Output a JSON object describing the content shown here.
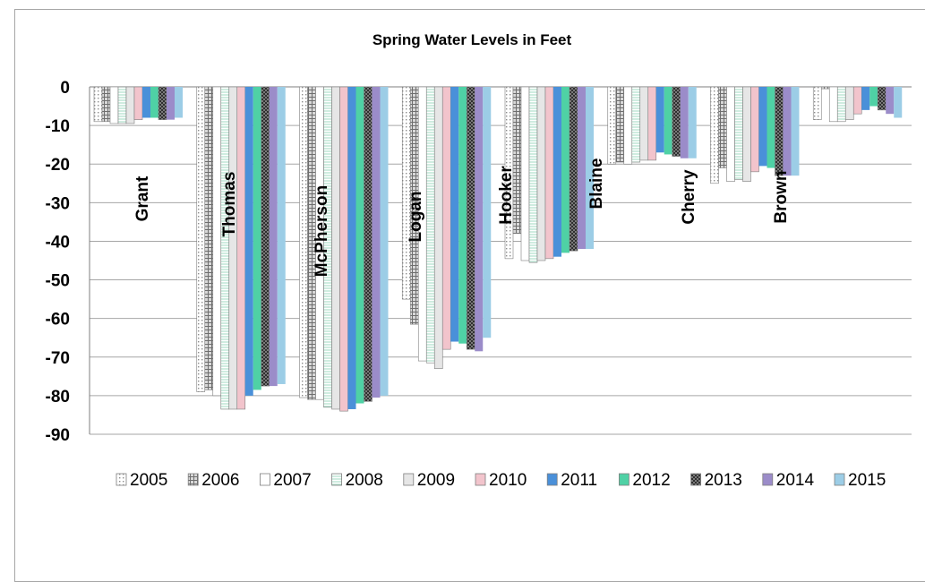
{
  "chart_data": {
    "type": "bar",
    "title": "Spring Water Levels in Feet",
    "xlabel": "",
    "ylabel": "",
    "ylim": [
      -90,
      0
    ],
    "yticks": [
      0,
      -10,
      -20,
      -30,
      -40,
      -50,
      -60,
      -70,
      -80,
      -90
    ],
    "grid": true,
    "legend_position": "bottom",
    "categories": [
      "Grant",
      "Thomas",
      "McPherson",
      "Logan",
      "Hooker",
      "Blaine",
      "Cherry",
      "Brown"
    ],
    "series": [
      {
        "name": "2005",
        "color": "#ffffff",
        "pattern": "dots",
        "values": [
          -9,
          -79,
          -80.5,
          -55,
          -44.5,
          -20,
          -25,
          -8.5
        ]
      },
      {
        "name": "2006",
        "color": "#d9d9d9",
        "pattern": "grid",
        "values": [
          -9,
          -78.5,
          -81,
          -61.5,
          -38,
          -19.5,
          -21,
          -0.5
        ]
      },
      {
        "name": "2007",
        "color": "#ffffff",
        "pattern": "plain",
        "values": [
          -9.5,
          -80,
          -81,
          -71,
          -45,
          -20,
          -24.5,
          -9
        ]
      },
      {
        "name": "2008",
        "color": "#eaf5ee",
        "pattern": "hstripe",
        "values": [
          -9.5,
          -83.5,
          -83,
          -71.5,
          -45.5,
          -19.5,
          -24,
          -9
        ]
      },
      {
        "name": "2009",
        "color": "#e6e6e6",
        "pattern": "plain",
        "values": [
          -9.5,
          -83.5,
          -83.5,
          -73,
          -45,
          -19,
          -24.5,
          -8.5
        ]
      },
      {
        "name": "2010",
        "color": "#f2c4cc",
        "pattern": "plain",
        "values": [
          -8.5,
          -83.5,
          -84,
          -68,
          -44.5,
          -19,
          -22,
          -7
        ]
      },
      {
        "name": "2011",
        "color": "#4a90d9",
        "pattern": "solid",
        "values": [
          -8,
          -80,
          -83.5,
          -66,
          -44,
          -17,
          -20.5,
          -6
        ]
      },
      {
        "name": "2012",
        "color": "#4fd1a5",
        "pattern": "solid",
        "values": [
          -8,
          -78.5,
          -82,
          -66.5,
          -43,
          -17.5,
          -21,
          -5
        ]
      },
      {
        "name": "2013",
        "color": "#3c3c3c",
        "pattern": "checker",
        "values": [
          -8.5,
          -77.5,
          -81.5,
          -68,
          -42.5,
          -18,
          -23,
          -6
        ]
      },
      {
        "name": "2014",
        "color": "#9b8cc9",
        "pattern": "solid",
        "values": [
          -8.5,
          -77.5,
          -80.5,
          -68.5,
          -42,
          -18.5,
          -23,
          -7
        ]
      },
      {
        "name": "2015",
        "color": "#9ccde6",
        "pattern": "solid",
        "values": [
          -8,
          -77,
          -80,
          -65,
          -42,
          -18.5,
          -23,
          -8
        ]
      }
    ]
  }
}
